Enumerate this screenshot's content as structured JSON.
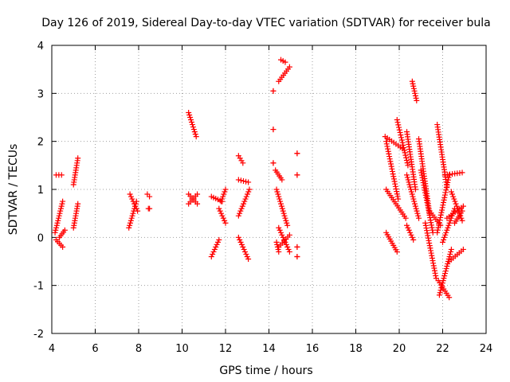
{
  "chart_data": {
    "type": "scatter",
    "title": "Day 126 of 2019, Sidereal Day-to-day VTEC variation (SDTVAR) for receiver bula",
    "xlabel": "GPS time / hours",
    "ylabel": "SDTVAR / TECUs",
    "xlim": [
      4,
      24
    ],
    "ylim": [
      -2,
      4
    ],
    "xticks": [
      4,
      6,
      8,
      10,
      12,
      14,
      16,
      18,
      20,
      22,
      24
    ],
    "yticks": [
      -2,
      -1,
      0,
      1,
      2,
      3,
      4
    ],
    "grid": true,
    "marker": "+",
    "series_color": "#ff0000",
    "tracks": [
      {
        "x0": 4.15,
        "x1": 4.5,
        "y0": 0.1,
        "y1": 0.75
      },
      {
        "x0": 4.2,
        "x1": 4.45,
        "y0": 1.3,
        "y1": 1.3
      },
      {
        "x0": 4.2,
        "x1": 4.5,
        "y0": -0.05,
        "y1": -0.2
      },
      {
        "x0": 4.35,
        "x1": 4.6,
        "y0": 0.0,
        "y1": 0.15
      },
      {
        "x0": 5.0,
        "x1": 5.2,
        "y0": 1.1,
        "y1": 1.65
      },
      {
        "x0": 5.0,
        "x1": 5.2,
        "y0": 0.2,
        "y1": 0.7
      },
      {
        "x0": 7.6,
        "x1": 7.95,
        "y0": 0.9,
        "y1": 0.55
      },
      {
        "x0": 7.55,
        "x1": 7.9,
        "y0": 0.2,
        "y1": 0.75
      },
      {
        "x0": 8.4,
        "x1": 8.5,
        "y0": 0.9,
        "y1": 0.85
      },
      {
        "x0": 8.45,
        "x1": 8.5,
        "y0": 0.6,
        "y1": 0.6
      },
      {
        "x0": 10.3,
        "x1": 10.65,
        "y0": 2.6,
        "y1": 2.1
      },
      {
        "x0": 10.3,
        "x1": 10.7,
        "y0": 0.9,
        "y1": 0.7
      },
      {
        "x0": 10.3,
        "x1": 10.7,
        "y0": 0.7,
        "y1": 0.9
      },
      {
        "x0": 11.35,
        "x1": 11.7,
        "y0": -0.4,
        "y1": -0.05
      },
      {
        "x0": 11.35,
        "x1": 11.85,
        "y0": 0.85,
        "y1": 0.75
      },
      {
        "x0": 11.7,
        "x1": 12.0,
        "y0": 0.6,
        "y1": 0.3
      },
      {
        "x0": 11.8,
        "x1": 12.0,
        "y0": 0.75,
        "y1": 1.0
      },
      {
        "x0": 12.6,
        "x1": 12.8,
        "y0": 1.7,
        "y1": 1.55
      },
      {
        "x0": 12.6,
        "x1": 13.05,
        "y0": 1.2,
        "y1": 1.15
      },
      {
        "x0": 12.6,
        "x1": 13.1,
        "y0": 0.45,
        "y1": 1.0
      },
      {
        "x0": 12.6,
        "x1": 13.05,
        "y0": 0.0,
        "y1": -0.45
      },
      {
        "x0": 14.2,
        "x1": 14.2,
        "y0": 2.25,
        "y1": 2.25
      },
      {
        "x0": 14.2,
        "x1": 14.2,
        "y0": 3.05,
        "y1": 3.05
      },
      {
        "x0": 14.2,
        "x1": 14.2,
        "y0": 1.55,
        "y1": 1.55
      },
      {
        "x0": 14.45,
        "x1": 14.95,
        "y0": 3.25,
        "y1": 3.55
      },
      {
        "x0": 14.55,
        "x1": 14.75,
        "y0": 3.7,
        "y1": 3.65
      },
      {
        "x0": 14.3,
        "x1": 14.6,
        "y0": 1.4,
        "y1": 1.2
      },
      {
        "x0": 14.35,
        "x1": 14.85,
        "y0": 1.0,
        "y1": 0.25
      },
      {
        "x0": 14.45,
        "x1": 14.95,
        "y0": 0.2,
        "y1": -0.3
      },
      {
        "x0": 14.45,
        "x1": 14.95,
        "y0": -0.2,
        "y1": 0.05
      },
      {
        "x0": 14.35,
        "x1": 14.45,
        "y0": -0.1,
        "y1": -0.3
      },
      {
        "x0": 15.3,
        "x1": 15.3,
        "y0": 1.75,
        "y1": 1.75
      },
      {
        "x0": 15.3,
        "x1": 15.3,
        "y0": 1.3,
        "y1": 1.3
      },
      {
        "x0": 15.3,
        "x1": 15.3,
        "y0": -0.4,
        "y1": -0.4
      },
      {
        "x0": 15.3,
        "x1": 15.3,
        "y0": -0.2,
        "y1": -0.2
      },
      {
        "x0": 19.35,
        "x1": 20.15,
        "y0": 2.1,
        "y1": 1.85
      },
      {
        "x0": 19.4,
        "x1": 19.95,
        "y0": 2.0,
        "y1": 0.8
      },
      {
        "x0": 19.4,
        "x1": 20.3,
        "y0": 1.0,
        "y1": 0.4
      },
      {
        "x0": 19.4,
        "x1": 19.9,
        "y0": 0.1,
        "y1": -0.3
      },
      {
        "x0": 19.9,
        "x1": 20.4,
        "y0": 2.45,
        "y1": 1.5
      },
      {
        "x0": 20.35,
        "x1": 20.75,
        "y0": 2.2,
        "y1": 1.0
      },
      {
        "x0": 20.6,
        "x1": 20.8,
        "y0": 3.25,
        "y1": 2.85
      },
      {
        "x0": 20.35,
        "x1": 20.65,
        "y0": 0.25,
        "y1": -0.05
      },
      {
        "x0": 20.35,
        "x1": 20.9,
        "y0": 1.3,
        "y1": 0.4
      },
      {
        "x0": 20.9,
        "x1": 21.4,
        "y0": 2.05,
        "y1": 0.5
      },
      {
        "x0": 21.0,
        "x1": 21.55,
        "y0": 1.4,
        "y1": 0.1
      },
      {
        "x0": 21.2,
        "x1": 21.7,
        "y0": 0.3,
        "y1": -0.85
      },
      {
        "x0": 21.4,
        "x1": 21.9,
        "y0": 0.55,
        "y1": 0.25
      },
      {
        "x0": 21.75,
        "x1": 22.2,
        "y0": 2.35,
        "y1": 1.05
      },
      {
        "x0": 21.75,
        "x1": 22.3,
        "y0": 0.1,
        "y1": 1.3
      },
      {
        "x0": 21.8,
        "x1": 22.3,
        "y0": -0.9,
        "y1": -1.25
      },
      {
        "x0": 21.85,
        "x1": 22.4,
        "y0": -1.2,
        "y1": -0.25
      },
      {
        "x0": 22.0,
        "x1": 22.55,
        "y0": -0.1,
        "y1": 0.6
      },
      {
        "x0": 22.1,
        "x1": 22.9,
        "y0": 1.3,
        "y1": 1.35
      },
      {
        "x0": 22.3,
        "x1": 22.95,
        "y0": -0.5,
        "y1": -0.25
      },
      {
        "x0": 22.2,
        "x1": 22.95,
        "y0": 0.4,
        "y1": 0.65
      },
      {
        "x0": 22.4,
        "x1": 22.9,
        "y0": 0.95,
        "y1": 0.35
      },
      {
        "x0": 22.55,
        "x1": 22.9,
        "y0": 0.3,
        "y1": 0.55
      }
    ]
  }
}
